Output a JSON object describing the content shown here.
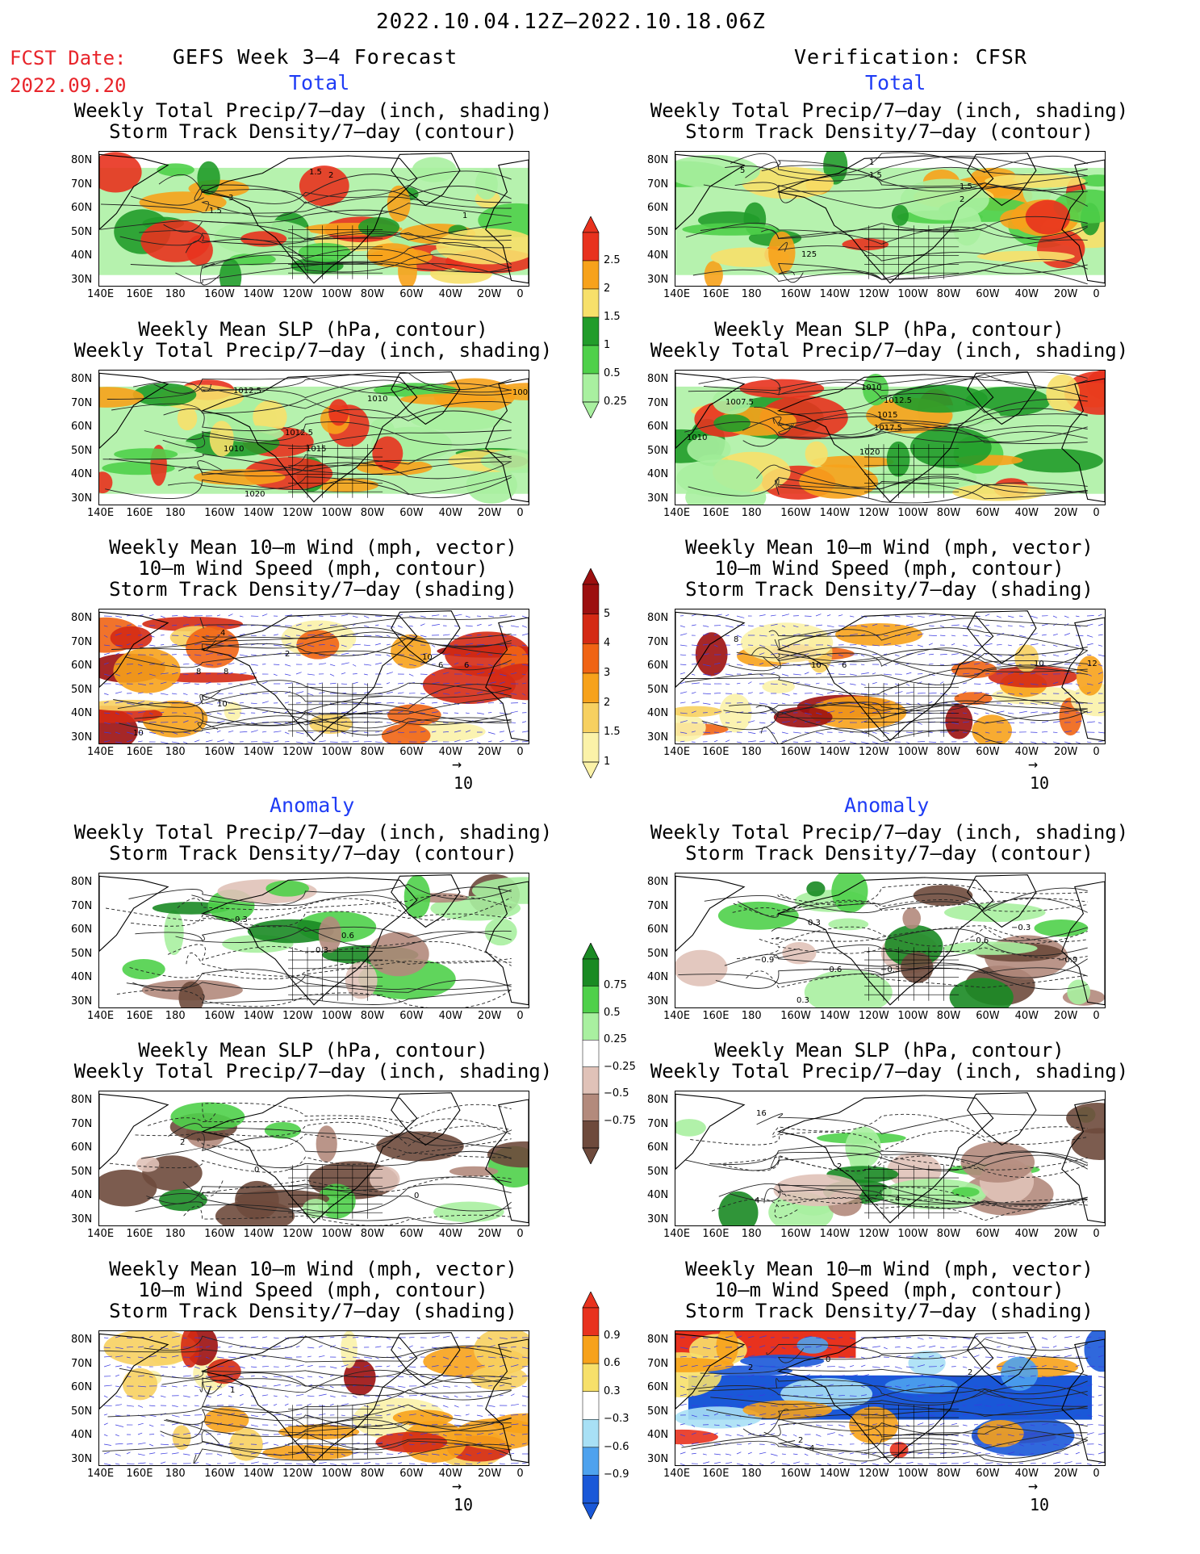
{
  "header": {
    "title": "2022.10.04.12Z–2022.10.18.06Z",
    "fcst_label": "FCST Date:",
    "fcst_date": "2022.09.20",
    "left_title": "GEFS Week 3–4 Forecast",
    "right_title": "Verification: CFSR"
  },
  "sections": {
    "total": "Total",
    "anomaly": "Anomaly"
  },
  "panel_titles": {
    "precip_storm": [
      "Weekly Total Precip/7–day (inch, shading)",
      "Storm Track Density/7–day (contour)"
    ],
    "slp_precip": [
      "Weekly Mean SLP (hPa, contour)",
      "Weekly Total Precip/7–day (inch, shading)"
    ],
    "wind_storm": [
      "Weekly Mean 10–m Wind (mph, vector)",
      "10–m Wind Speed (mph, contour)",
      "Storm Track Density/7–day (shading)"
    ]
  },
  "axes": {
    "lat_labels": [
      "80N",
      "70N",
      "60N",
      "50N",
      "40N",
      "30N"
    ],
    "lon_labels": [
      "140E",
      "160E",
      "180",
      "160W",
      "140W",
      "120W",
      "100W",
      "80W",
      "60W",
      "40W",
      "20W",
      "0"
    ]
  },
  "vector_ref": "10",
  "colorbars": {
    "precip_total": {
      "labels": [
        "2.5",
        "2",
        "1.5",
        "1",
        "0.5",
        "0.25"
      ],
      "colors": [
        "#e8321e",
        "#f7a21b",
        "#f7e06a",
        "#219c2a",
        "#4fd04a",
        "#a9f0a0"
      ]
    },
    "storm_total": {
      "labels": [
        "5",
        "4",
        "3",
        "2",
        "1.5",
        "1"
      ],
      "colors": [
        "#9c1010",
        "#d42a14",
        "#f06414",
        "#f7a21b",
        "#f7d060",
        "#fbf2a8"
      ]
    },
    "precip_anom": {
      "labels": [
        "0.75",
        "0.5",
        "0.25",
        "−0.25",
        "−0.5",
        "−0.75"
      ],
      "colors": [
        "#1a8a23",
        "#4fd04a",
        "#a9f0a0",
        "#ffffff",
        "#e0c2b8",
        "#b38a7c",
        "#6e4a3c"
      ]
    },
    "storm_anom": {
      "labels": [
        "0.9",
        "0.6",
        "0.3",
        "−0.3",
        "−0.6",
        "−0.9"
      ],
      "colors": [
        "#e8321e",
        "#f7a21b",
        "#f7e06a",
        "#ffffff",
        "#a8e0f5",
        "#4ea2ee",
        "#1a58d8"
      ]
    }
  },
  "map_contour_labels": {
    "p1L": [
      "1.5",
      "2",
      "3",
      "1.5",
      "1"
    ],
    "p1R": [
      "5",
      "1",
      "1.5",
      "1.5",
      "2",
      "125"
    ],
    "p2L": [
      "1012.5",
      "1010",
      "1012.5",
      "1015",
      "1010",
      "1020",
      "100"
    ],
    "p2R": [
      "1007.5",
      "1010",
      "1010",
      "1012.5",
      "1015",
      "1017.5",
      "1020"
    ],
    "p3L": [
      "4",
      "8",
      "8",
      "10",
      "2",
      "10",
      "6",
      "6",
      "10"
    ],
    "p3R": [
      "8",
      "10",
      "6",
      "10",
      "12"
    ],
    "p4L": [
      "0.3",
      "0.3",
      "0.6"
    ],
    "p4R": [
      "0.3",
      "−0.9",
      "−0.6",
      "−0.3",
      "0.3",
      "−0.6",
      "−0.3",
      "−0.9"
    ],
    "p5L": [
      "2",
      "0",
      "0"
    ],
    "p5R": [
      "16",
      "2",
      "4",
      "4"
    ],
    "p6L": [
      "1"
    ],
    "p6R": [
      "2",
      "2",
      "0",
      "2",
      "4"
    ]
  }
}
